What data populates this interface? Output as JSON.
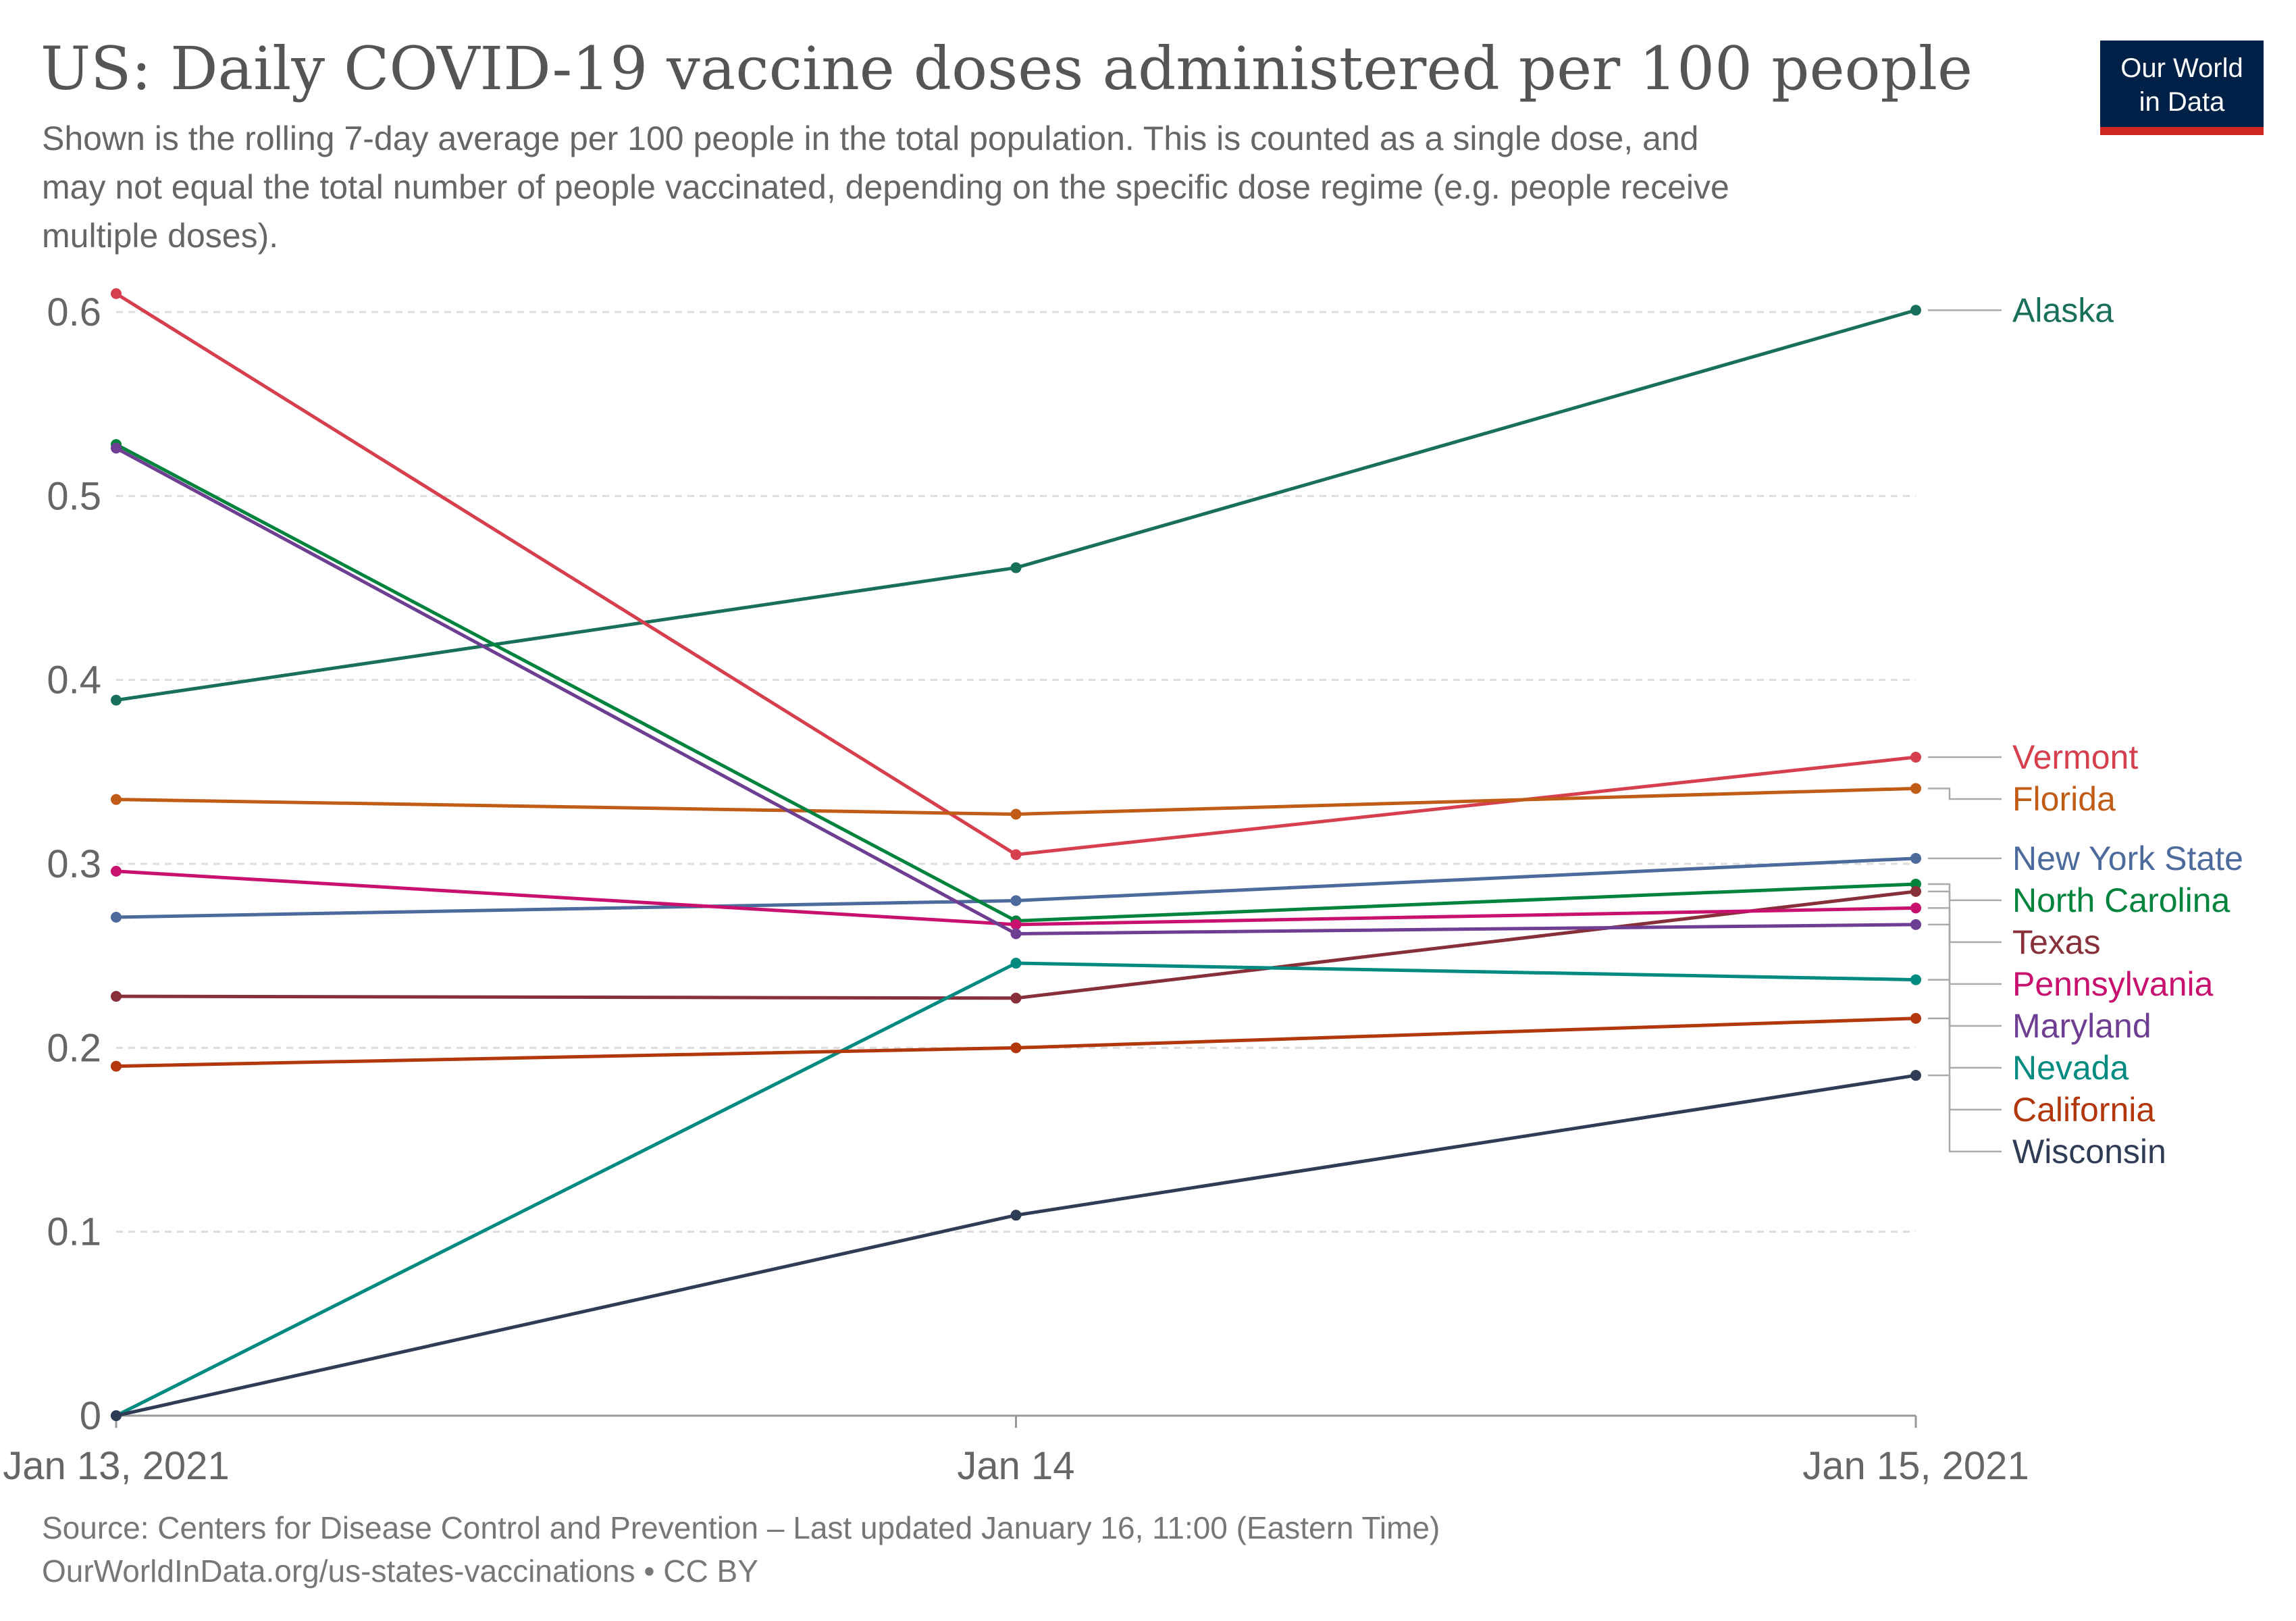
{
  "header": {
    "title": "US: Daily COVID-19 vaccine doses administered per 100 people",
    "subtitle_lines": [
      "Shown is the rolling 7-day average per 100 people in the total population. This is counted as a single dose, and",
      "may not equal the total number of people vaccinated, depending on the specific dose regime (e.g. people receive",
      "multiple doses)."
    ]
  },
  "logo": {
    "line1": "Our World",
    "line2": "in Data",
    "bg_color": "#002147",
    "accent_color": "#ce261e"
  },
  "footer": {
    "source": "Source: Centers for Disease Control and Prevention – Last updated January 16, 11:00 (Eastern Time)",
    "url": "OurWorldInData.org/us-states-vaccinations • CC BY"
  },
  "chart_data": {
    "type": "line",
    "x": [
      "2021-01-13",
      "2021-01-14",
      "2021-01-15"
    ],
    "x_tick_labels": [
      "Jan 13, 2021",
      "Jan 14",
      "Jan 15, 2021"
    ],
    "y_ticks": [
      0,
      0.1,
      0.2,
      0.3,
      0.4,
      0.5,
      0.6
    ],
    "y_tick_labels": [
      "0",
      "0.1",
      "0.2",
      "0.3",
      "0.4",
      "0.5",
      "0.6"
    ],
    "ylim": [
      0,
      0.6
    ],
    "grid": "horizontal dashed",
    "legend": "direct labels at right end",
    "series": [
      {
        "name": "Alaska",
        "color": "#18705a",
        "values": [
          0.389,
          0.461,
          0.601
        ]
      },
      {
        "name": "Vermont",
        "color": "#d6404e",
        "values": [
          0.61,
          0.305,
          0.358
        ]
      },
      {
        "name": "Florida",
        "color": "#c15c16",
        "values": [
          0.335,
          0.327,
          0.341
        ]
      },
      {
        "name": "New York State",
        "color": "#4c6a9c",
        "values": [
          0.271,
          0.28,
          0.303
        ]
      },
      {
        "name": "North Carolina",
        "color": "#00843d",
        "values": [
          0.528,
          0.269,
          0.289
        ]
      },
      {
        "name": "Texas",
        "color": "#883039",
        "values": [
          0.228,
          0.227,
          0.285
        ]
      },
      {
        "name": "Pennsylvania",
        "color": "#c8106e",
        "values": [
          0.296,
          0.267,
          0.276
        ]
      },
      {
        "name": "Maryland",
        "color": "#6d3e91",
        "values": [
          0.526,
          0.262,
          0.267
        ]
      },
      {
        "name": "Nevada",
        "color": "#008a80",
        "values": [
          0.0,
          0.246,
          0.237
        ]
      },
      {
        "name": "California",
        "color": "#b2370b",
        "values": [
          0.19,
          0.2,
          0.216
        ]
      },
      {
        "name": "Wisconsin",
        "color": "#2e3d55",
        "values": [
          0.0,
          0.109,
          0.185
        ]
      }
    ]
  }
}
